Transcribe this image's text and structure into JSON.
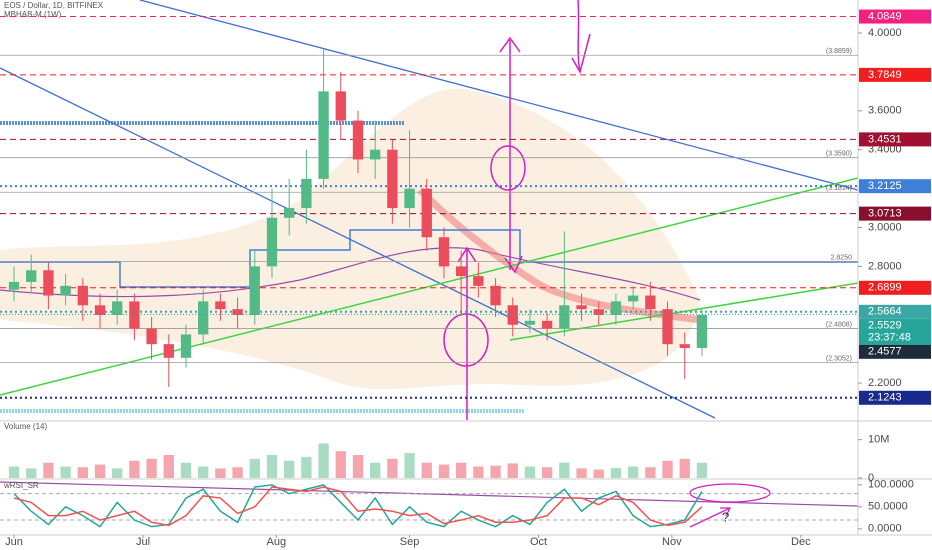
{
  "chart_data": [
    {
      "type": "candlestick",
      "title": "EOS / Dollar, 1D, BITFINEX",
      "subtitle": "MBHAB-M (1W)",
      "x": [
        0,
        4,
        8,
        12,
        16,
        20,
        24,
        28,
        32,
        36,
        40,
        44,
        48,
        52,
        56,
        60,
        64,
        68,
        72,
        76,
        80,
        84,
        88,
        92,
        96,
        100,
        104,
        108,
        112,
        116,
        120,
        124,
        128,
        132,
        136,
        140,
        144,
        148,
        152,
        156,
        160
      ],
      "open": [
        2.68,
        2.72,
        2.78,
        2.65,
        2.7,
        2.6,
        2.55,
        2.62,
        2.48,
        2.4,
        2.33,
        2.45,
        2.62,
        2.58,
        2.55,
        2.8,
        3.05,
        3.1,
        3.25,
        3.7,
        3.55,
        3.35,
        3.4,
        3.1,
        3.2,
        2.95,
        2.8,
        2.75,
        2.7,
        2.6,
        2.5,
        2.52,
        2.48,
        2.6,
        2.58,
        2.55,
        2.62,
        2.65,
        2.58,
        2.4,
        2.38
      ],
      "high": [
        2.8,
        2.86,
        2.82,
        2.76,
        2.74,
        2.66,
        2.68,
        2.66,
        2.54,
        2.45,
        2.5,
        2.68,
        2.66,
        2.64,
        2.88,
        3.2,
        3.25,
        3.4,
        3.92,
        3.8,
        3.6,
        3.55,
        3.45,
        3.5,
        3.25,
        3.0,
        2.88,
        2.82,
        2.74,
        2.64,
        2.58,
        2.56,
        2.98,
        2.66,
        2.62,
        2.66,
        2.7,
        2.72,
        2.62,
        2.46,
        2.58
      ],
      "low": [
        2.62,
        2.66,
        2.58,
        2.6,
        2.52,
        2.48,
        2.5,
        2.42,
        2.32,
        2.18,
        2.28,
        2.4,
        2.52,
        2.48,
        2.5,
        2.74,
        2.96,
        3.02,
        3.2,
        3.45,
        3.28,
        3.25,
        3.02,
        3.0,
        2.88,
        2.74,
        2.55,
        2.64,
        2.54,
        2.44,
        2.46,
        2.42,
        2.44,
        2.52,
        2.5,
        2.5,
        2.58,
        2.52,
        2.34,
        2.22,
        2.34
      ],
      "close": [
        2.72,
        2.78,
        2.65,
        2.7,
        2.6,
        2.55,
        2.62,
        2.48,
        2.4,
        2.33,
        2.45,
        2.62,
        2.58,
        2.55,
        2.8,
        3.05,
        3.1,
        3.25,
        3.7,
        3.55,
        3.35,
        3.4,
        3.1,
        3.2,
        2.95,
        2.8,
        2.75,
        2.7,
        2.6,
        2.5,
        2.52,
        2.48,
        2.6,
        2.58,
        2.55,
        2.62,
        2.65,
        2.58,
        2.4,
        2.38,
        2.55
      ],
      "up_color": "#53b987",
      "down_color": "#eb4d5c",
      "xlim": [
        -3.26,
        196.3
      ],
      "xticks": [
        {
          "value": 0,
          "label": "Jun"
        },
        {
          "value": 30,
          "label": "Jul"
        },
        {
          "value": 61,
          "label": "Aug"
        },
        {
          "value": 92,
          "label": "Sep"
        },
        {
          "value": 122,
          "label": "Oct"
        },
        {
          "value": 153,
          "label": "Nov"
        },
        {
          "value": 183,
          "label": "Dec"
        }
      ],
      "ylim": [
        2.01,
        4.17
      ],
      "yticks": [
        {
          "value": 4,
          "label": "4.0000"
        },
        {
          "value": 3.6,
          "label": "3.6000"
        },
        {
          "value": 3.4,
          "label": "3.4000"
        },
        {
          "value": 3,
          "label": "3.0000"
        },
        {
          "value": 2.8,
          "label": "2.8000"
        },
        {
          "value": 2.2,
          "label": "2.2000"
        }
      ],
      "levels": [
        {
          "value": 4.0849,
          "color": "#f2217f",
          "style": "dashed"
        },
        {
          "value": 3.7849,
          "color": "#f01e1e",
          "style": "dashed"
        },
        {
          "value": 3.4531,
          "color": "#a01030",
          "style": "dashed"
        },
        {
          "value": 3.2125,
          "color": "#3f7fd8",
          "style": "dotted"
        },
        {
          "value": 3.0713,
          "color": "#8a0f2e",
          "style": "dashed"
        },
        {
          "value": 2.6899,
          "color": "#f01e1e",
          "style": "dashed"
        },
        {
          "value": 2.5664,
          "color": "#3aa6a6",
          "style": "dotted"
        },
        {
          "value": 2.4577,
          "color": "#1e2b3a",
          "style": "none"
        },
        {
          "value": 2.1243,
          "color": "#1a2a8c",
          "style": "dotted"
        }
      ],
      "last_price": {
        "value": 2.5529,
        "countdown": "23:37:48",
        "color": "#26a69a"
      },
      "annotations": [
        {
          "value": 3.8859,
          "label": "(3.8859)"
        },
        {
          "value": 3.359,
          "label": "(3.3590)"
        },
        {
          "value": 3.1814,
          "label": "(3.1814)"
        },
        {
          "value": 2.825,
          "label": "2.8250"
        },
        {
          "value": 2.4808,
          "label": "(2.4808)"
        },
        {
          "value": 2.3052,
          "label": "(2.3052)"
        }
      ]
    },
    {
      "type": "volume",
      "title": "Volume (14)",
      "values": [
        3000000,
        2500000,
        4000000,
        3000000,
        2800000,
        3500000,
        2500000,
        4500000,
        5000000,
        6000000,
        4000000,
        3000000,
        2500000,
        2800000,
        5000000,
        6000000,
        4500000,
        5500000,
        9000000,
        7000000,
        6000000,
        4000000,
        5000000,
        6500000,
        4000000,
        3500000,
        4000000,
        3000000,
        3200000,
        3800000,
        3000000,
        2800000,
        4000000,
        2500000,
        2200000,
        2600000,
        3000000,
        2800000,
        4500000,
        5000000,
        4000000
      ],
      "ylim": [
        0,
        14600000
      ],
      "yticks": [
        {
          "value": 10000000,
          "label": "10M"
        },
        0
      ]
    },
    {
      "type": "line",
      "title": "wRSI_SR",
      "series": [
        {
          "color": "#26a69a",
          "values": [
            80,
            40,
            10,
            50,
            30,
            5,
            60,
            20,
            5,
            10,
            70,
            90,
            40,
            15,
            95,
            100,
            80,
            90,
            100,
            60,
            20,
            70,
            10,
            50,
            15,
            5,
            40,
            20,
            5,
            30,
            10,
            60,
            90,
            40,
            70,
            85,
            30,
            5,
            10,
            20,
            85
          ]
        },
        {
          "color": "#ef5350",
          "values": [
            70,
            60,
            30,
            30,
            40,
            20,
            30,
            40,
            15,
            8,
            30,
            75,
            70,
            35,
            50,
            95,
            90,
            85,
            95,
            85,
            40,
            45,
            40,
            30,
            35,
            12,
            20,
            30,
            15,
            15,
            20,
            30,
            70,
            70,
            55,
            75,
            60,
            20,
            8,
            15,
            50
          ]
        }
      ],
      "bands": [
        80,
        20
      ],
      "ylim": [
        -14,
        111
      ],
      "yticks": [
        {
          "value": 100,
          "label": "100.0000"
        },
        {
          "value": 50,
          "label": "50.0000"
        },
        {
          "value": 0,
          "label": "0.0000"
        }
      ],
      "annotations": [
        "?"
      ]
    }
  ]
}
